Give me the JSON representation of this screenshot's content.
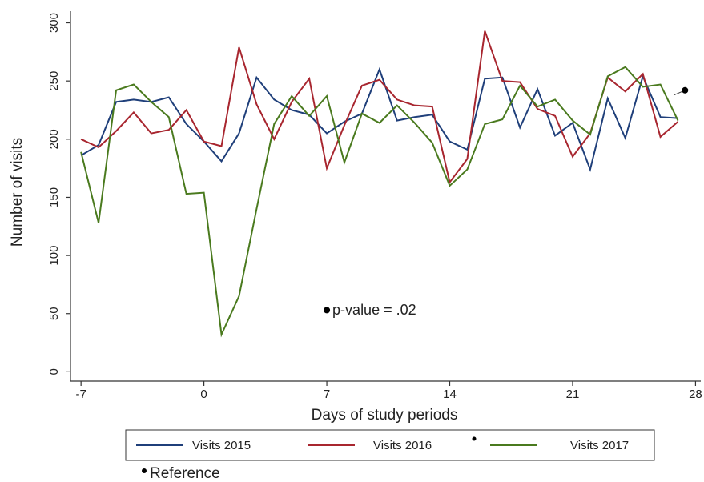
{
  "chart_data": {
    "type": "line",
    "x_label": "Days of study periods",
    "y_label": "Number of visits",
    "x": [
      -7,
      -6,
      -5,
      -4,
      -3,
      -2,
      -1,
      0,
      1,
      2,
      3,
      4,
      5,
      6,
      7,
      8,
      9,
      10,
      11,
      12,
      13,
      14,
      15,
      16,
      17,
      18,
      19,
      20,
      21,
      22,
      23,
      24,
      25,
      26,
      27
    ],
    "series": [
      {
        "name": "Visits 2015",
        "color": "#1f3f7a",
        "values": [
          186,
          195,
          232,
          234,
          232,
          236,
          213,
          198,
          181,
          205,
          253,
          234,
          225,
          221,
          205,
          215,
          222,
          260,
          216,
          219,
          221,
          198,
          191,
          252,
          253,
          210,
          243,
          203,
          214,
          174,
          235,
          201,
          254,
          219,
          218
        ]
      },
      {
        "name": "Visits 2016",
        "color": "#a8262f",
        "values": [
          200,
          193,
          207,
          223,
          205,
          208,
          225,
          198,
          194,
          279,
          230,
          200,
          232,
          252,
          175,
          212,
          246,
          251,
          234,
          229,
          228,
          163,
          183,
          293,
          250,
          249,
          226,
          220,
          185,
          205,
          253,
          241,
          256,
          202,
          215
        ]
      },
      {
        "name": "Visits 2017",
        "color": "#4a7a1e",
        "values": [
          189,
          128,
          242,
          247,
          232,
          219,
          153,
          154,
          32,
          65,
          140,
          213,
          237,
          220,
          237,
          180,
          222,
          214,
          229,
          214,
          197,
          160,
          174,
          213,
          217,
          246,
          228,
          234,
          216,
          204,
          254,
          262,
          245,
          247,
          216
        ]
      }
    ],
    "reference": {
      "name": "Reference",
      "x": 27.4,
      "y": 242
    },
    "annotation": {
      "text": "p-value = .02",
      "x": 7,
      "y": 53
    },
    "xlim": [
      -7.6,
      28.3
    ],
    "xticks": [
      -7,
      0,
      7,
      14,
      21,
      28
    ],
    "ylim": [
      -8,
      310
    ],
    "yticks": [
      0,
      50,
      100,
      150,
      200,
      250,
      300
    ]
  }
}
